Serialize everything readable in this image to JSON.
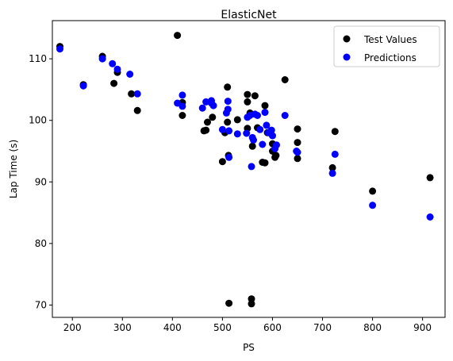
{
  "chart_data": {
    "type": "scatter",
    "title": "ElasticNet",
    "xlabel": "PS",
    "ylabel": "Lap Time (s)",
    "xlim": [
      160,
      945
    ],
    "ylim": [
      68,
      116.2
    ],
    "xticks": [
      200,
      300,
      400,
      500,
      600,
      700,
      800,
      900
    ],
    "yticks": [
      70,
      80,
      90,
      100,
      110
    ],
    "grid": false,
    "legend_position": "top-right",
    "series": [
      {
        "name": "Test Values",
        "color": "#000000",
        "points": [
          [
            175,
            112.0
          ],
          [
            222,
            105.8
          ],
          [
            260,
            110.4
          ],
          [
            283,
            106.0
          ],
          [
            290,
            107.8
          ],
          [
            318,
            104.3
          ],
          [
            330,
            101.6
          ],
          [
            410,
            113.8
          ],
          [
            420,
            102.9
          ],
          [
            420,
            100.8
          ],
          [
            463,
            98.3
          ],
          [
            467,
            98.4
          ],
          [
            470,
            99.7
          ],
          [
            480,
            100.5
          ],
          [
            500,
            93.3
          ],
          [
            505,
            98.0
          ],
          [
            510,
            105.4
          ],
          [
            510,
            99.7
          ],
          [
            512,
            94.3
          ],
          [
            513,
            70.3
          ],
          [
            530,
            100.1
          ],
          [
            550,
            104.2
          ],
          [
            550,
            103.0
          ],
          [
            550,
            98.7
          ],
          [
            555,
            101.2
          ],
          [
            560,
            95.8
          ],
          [
            558,
            71.0
          ],
          [
            558,
            70.2
          ],
          [
            565,
            104.0
          ],
          [
            570,
            98.8
          ],
          [
            580,
            93.2
          ],
          [
            585,
            93.1
          ],
          [
            585,
            102.4
          ],
          [
            590,
            98.0
          ],
          [
            600,
            95.0
          ],
          [
            600,
            96.2
          ],
          [
            605,
            94.0
          ],
          [
            607,
            94.3
          ],
          [
            625,
            106.6
          ],
          [
            650,
            93.8
          ],
          [
            650,
            98.6
          ],
          [
            650,
            96.4
          ],
          [
            720,
            92.3
          ],
          [
            725,
            98.2
          ],
          [
            800,
            88.5
          ],
          [
            915,
            90.7
          ]
        ]
      },
      {
        "name": "Predictions",
        "color": "#0000ff",
        "points": [
          [
            175,
            111.6
          ],
          [
            222,
            105.6
          ],
          [
            260,
            110.0
          ],
          [
            280,
            109.2
          ],
          [
            290,
            108.3
          ],
          [
            315,
            107.5
          ],
          [
            330,
            104.3
          ],
          [
            410,
            102.8
          ],
          [
            420,
            104.1
          ],
          [
            420,
            102.3
          ],
          [
            460,
            102.0
          ],
          [
            467,
            103.0
          ],
          [
            478,
            103.2
          ],
          [
            478,
            102.8
          ],
          [
            482,
            102.4
          ],
          [
            500,
            98.5
          ],
          [
            508,
            101.2
          ],
          [
            511,
            103.1
          ],
          [
            511,
            101.8
          ],
          [
            513,
            98.3
          ],
          [
            513,
            94.0
          ],
          [
            530,
            97.8
          ],
          [
            548,
            97.9
          ],
          [
            550,
            100.5
          ],
          [
            555,
            100.8
          ],
          [
            558,
            92.5
          ],
          [
            560,
            97.2
          ],
          [
            562,
            96.8
          ],
          [
            565,
            101.0
          ],
          [
            570,
            100.8
          ],
          [
            575,
            98.5
          ],
          [
            580,
            96.1
          ],
          [
            585,
            101.3
          ],
          [
            588,
            99.2
          ],
          [
            592,
            98.0
          ],
          [
            598,
            98.4
          ],
          [
            600,
            97.5
          ],
          [
            605,
            95.4
          ],
          [
            608,
            96.0
          ],
          [
            625,
            100.8
          ],
          [
            648,
            95.0
          ],
          [
            650,
            94.8
          ],
          [
            720,
            91.4
          ],
          [
            725,
            94.5
          ],
          [
            800,
            86.2
          ],
          [
            915,
            84.3
          ]
        ]
      }
    ]
  }
}
